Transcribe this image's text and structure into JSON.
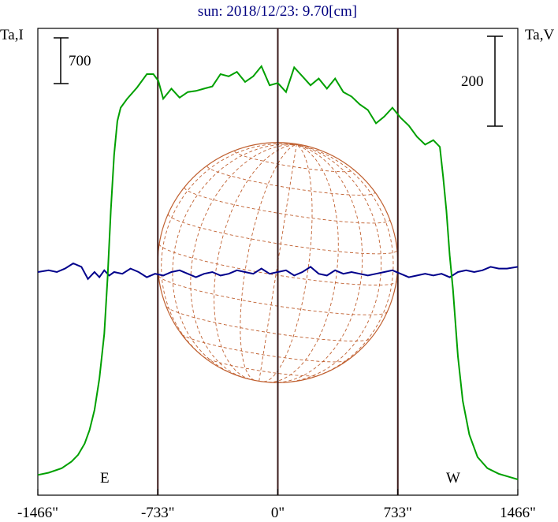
{
  "chart_data": {
    "type": "line",
    "title": "sun: 2018/12/23: 9.70[cm]",
    "ylabel_left": "Ta,I",
    "ylabel_right": "Ta,V",
    "scale_left": "700",
    "scale_right": "200",
    "limb_labels": {
      "east": "E",
      "west": "W"
    },
    "xlim": [
      -1466,
      1466
    ],
    "xticks": [
      -1466,
      -733,
      0,
      733,
      1466
    ],
    "xtick_labels": [
      "-1466\"",
      "-733\"",
      "0\"",
      "733\"",
      "1466\""
    ],
    "solar_radius": 733,
    "colors": {
      "intensity": "#00a000",
      "polarization": "#00008b",
      "grid": "#c06030",
      "limb": "#3a1a1a",
      "title": "#000080"
    },
    "series": [
      {
        "name": "I",
        "x": [
          -1466,
          -1400,
          -1320,
          -1260,
          -1220,
          -1180,
          -1150,
          -1120,
          -1090,
          -1060,
          -1040,
          -1020,
          -1000,
          -980,
          -960,
          -920,
          -860,
          -800,
          -760,
          -730,
          -700,
          -650,
          -600,
          -550,
          -500,
          -450,
          -400,
          -350,
          -300,
          -250,
          -200,
          -150,
          -100,
          -50,
          0,
          50,
          100,
          150,
          200,
          250,
          300,
          350,
          400,
          450,
          500,
          550,
          600,
          650,
          700,
          750,
          800,
          850,
          900,
          950,
          990,
          1010,
          1030,
          1050,
          1070,
          1100,
          1130,
          1170,
          1220,
          1280,
          1350,
          1420,
          1466
        ],
        "values": [
          4,
          6,
          10,
          16,
          22,
          32,
          44,
          62,
          90,
          130,
          180,
          240,
          290,
          320,
          332,
          340,
          350,
          362,
          362,
          356,
          340,
          349,
          341,
          346,
          347,
          349,
          351,
          362,
          360,
          364,
          355,
          360,
          369,
          352,
          354,
          346,
          368,
          360,
          352,
          358,
          349,
          358,
          346,
          342,
          335,
          330,
          318,
          324,
          332,
          323,
          316,
          306,
          299,
          303,
          297,
          270,
          240,
          200,
          170,
          110,
          70,
          40,
          20,
          10,
          5,
          2,
          0
        ]
      },
      {
        "name": "V",
        "x": [
          -1466,
          -1400,
          -1350,
          -1300,
          -1250,
          -1200,
          -1160,
          -1120,
          -1090,
          -1060,
          -1030,
          -1000,
          -950,
          -900,
          -850,
          -800,
          -750,
          -700,
          -650,
          -600,
          -550,
          -500,
          -450,
          -400,
          -350,
          -300,
          -250,
          -200,
          -150,
          -100,
          -50,
          0,
          50,
          100,
          150,
          200,
          250,
          300,
          350,
          400,
          450,
          500,
          550,
          600,
          650,
          700,
          750,
          800,
          850,
          900,
          950,
          1000,
          1050,
          1100,
          1150,
          1200,
          1250,
          1300,
          1350,
          1400,
          1466
        ],
        "values": [
          0,
          1,
          0,
          2,
          5,
          3,
          -4,
          0,
          -3,
          1,
          -2,
          0,
          -1,
          2,
          0,
          -3,
          -1,
          -2,
          0,
          1,
          -1,
          -3,
          -1,
          0,
          -2,
          -1,
          1,
          0,
          -1,
          2,
          -1,
          0,
          1,
          -2,
          0,
          3,
          -1,
          -2,
          1,
          -1,
          0,
          -1,
          -2,
          -1,
          0,
          1,
          -1,
          -3,
          -2,
          -1,
          -2,
          -1,
          -3,
          0,
          1,
          0,
          1,
          3,
          2,
          2,
          3
        ]
      }
    ]
  }
}
